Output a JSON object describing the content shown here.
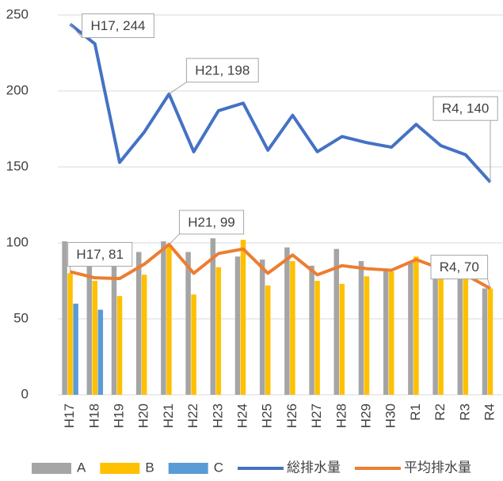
{
  "chart_data": {
    "type": "bar-line",
    "categories": [
      "H17",
      "H18",
      "H19",
      "H20",
      "H21",
      "H22",
      "H23",
      "H24",
      "H25",
      "H26",
      "H27",
      "H28",
      "H29",
      "H30",
      "R1",
      "R2",
      "R3",
      "R4"
    ],
    "ylim": [
      0,
      250
    ],
    "yticks": [
      0,
      50,
      100,
      150,
      200,
      250
    ],
    "grid": true,
    "series": [
      {
        "name": "A",
        "type": "bar",
        "color": "#a5a5a5",
        "values": [
          101,
          98,
          88,
          94,
          101,
          94,
          103,
          91,
          89,
          97,
          85,
          96,
          88,
          82,
          87,
          80,
          82,
          70
        ]
      },
      {
        "name": "B",
        "type": "bar",
        "color": "#ffc000",
        "values": [
          80,
          75,
          65,
          79,
          99,
          66,
          84,
          102,
          72,
          88,
          75,
          73,
          78,
          81,
          91,
          85,
          77,
          70
        ]
      },
      {
        "name": "C",
        "type": "bar",
        "color": "#5b9bd5",
        "values": [
          60,
          56,
          null,
          null,
          null,
          null,
          null,
          null,
          null,
          null,
          null,
          null,
          null,
          null,
          null,
          null,
          null,
          null
        ]
      },
      {
        "name": "総排水量",
        "type": "line",
        "color": "#4472c4",
        "values": [
          244,
          231,
          153,
          173,
          198,
          160,
          187,
          192,
          161,
          184,
          160,
          170,
          166,
          163,
          178,
          164,
          158,
          140
        ],
        "value_labels": [
          "H17, 244",
          null,
          null,
          null,
          "H21, 198",
          null,
          null,
          null,
          null,
          null,
          null,
          null,
          null,
          null,
          null,
          null,
          null,
          "R4, 140"
        ]
      },
      {
        "name": "平均排水量",
        "type": "line",
        "color": "#ed7d31",
        "values": [
          81,
          77,
          76.5,
          86,
          99,
          80,
          93,
          96,
          80,
          92,
          79,
          85,
          83,
          82,
          89,
          83,
          79,
          70
        ],
        "value_labels": [
          "H17, 81",
          null,
          null,
          null,
          "H21, 99",
          null,
          null,
          null,
          null,
          null,
          null,
          null,
          null,
          null,
          null,
          null,
          null,
          "R4, 70"
        ]
      }
    ]
  }
}
